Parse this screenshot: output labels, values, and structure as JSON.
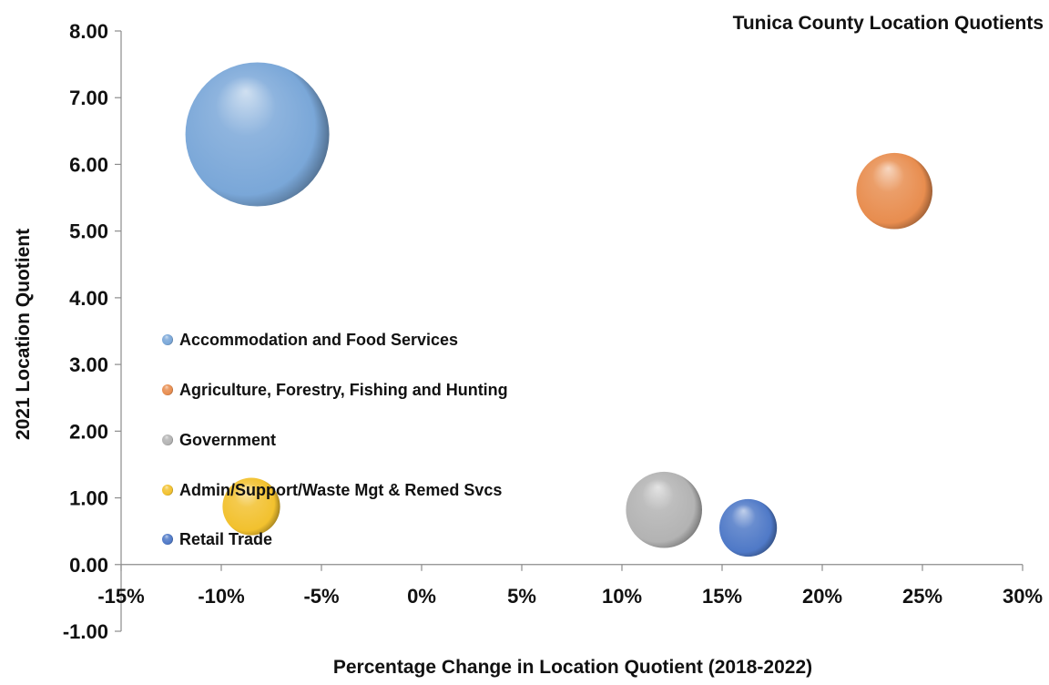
{
  "chart_data": {
    "type": "bubble",
    "title": "Tunica County Location Quotients",
    "xlabel": "Percentage Change in Location Quotient (2018-2022)",
    "ylabel": "2021 Location Quotient",
    "xlim": [
      -15,
      30
    ],
    "ylim": [
      -1,
      8
    ],
    "x_ticks": [
      "-15%",
      "-10%",
      "-5%",
      "0%",
      "5%",
      "10%",
      "15%",
      "20%",
      "25%",
      "30%"
    ],
    "y_ticks": [
      "-1.00",
      "0.00",
      "1.00",
      "2.00",
      "3.00",
      "4.00",
      "5.00",
      "6.00",
      "7.00",
      "8.00"
    ],
    "x_tick_values": [
      -15,
      -10,
      -5,
      0,
      5,
      10,
      15,
      20,
      25,
      30
    ],
    "y_tick_values": [
      -1,
      0,
      1,
      2,
      3,
      4,
      5,
      6,
      7,
      8
    ],
    "legend_position": "left-middle",
    "grid": false,
    "series": [
      {
        "name": "Accommodation and Food Services",
        "x": -8.2,
        "y": 6.45,
        "size": 100,
        "color": "#7aa7d8"
      },
      {
        "name": "Agriculture, Forestry, Fishing and Hunting",
        "x": 23.6,
        "y": 5.6,
        "size": 28,
        "color": "#e88d4f"
      },
      {
        "name": "Government",
        "x": 12.1,
        "y": 0.82,
        "size": 28,
        "color": "#b3b3b3"
      },
      {
        "name": "Admin/Support/Waste Mgt & Remed Svcs",
        "x": -8.5,
        "y": 0.87,
        "size": 16,
        "color": "#f2c12e"
      },
      {
        "name": "Retail Trade",
        "x": 16.3,
        "y": 0.55,
        "size": 16,
        "color": "#4f79c7"
      }
    ]
  }
}
